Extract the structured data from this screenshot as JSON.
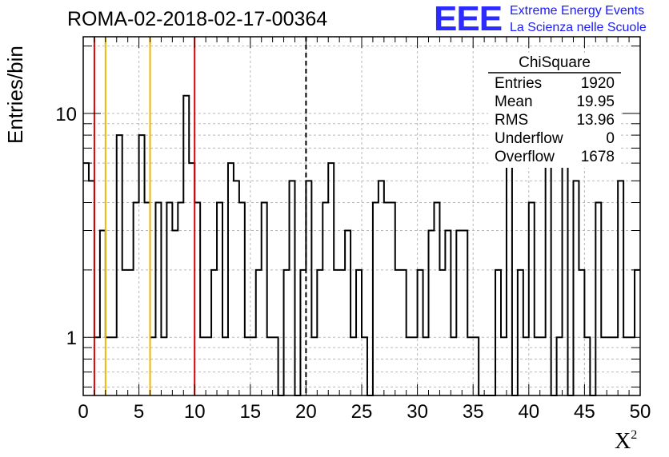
{
  "title": "ROMA-02-2018-02-17-00364",
  "logo": {
    "mark": "EEE",
    "line1": "Extreme Energy Events",
    "line2": "La Scienza nelle Scuole"
  },
  "axis": {
    "ylabel": "Entries/bin",
    "xlabel_base": "X",
    "xlabel_sup": "2"
  },
  "stats": {
    "title": "ChiSquare",
    "rows": [
      {
        "label": "Entries",
        "value": "1920"
      },
      {
        "label": "Mean",
        "value": "19.95"
      },
      {
        "label": "RMS",
        "value": "13.96"
      },
      {
        "label": "Underflow",
        "value": "0"
      },
      {
        "label": "Overflow",
        "value": "1678"
      }
    ]
  },
  "chart_data": {
    "type": "histogram",
    "xlim": [
      0,
      50
    ],
    "ylim": [
      0.55,
      22
    ],
    "y_scale": "log",
    "grid": true,
    "bin_width": 0.5,
    "x_ticks": [
      0,
      5,
      10,
      15,
      20,
      25,
      30,
      35,
      40,
      45,
      50
    ],
    "x_tick_labels": [
      "0",
      "5",
      "10",
      "15",
      "20",
      "25",
      "30",
      "35",
      "40",
      "45",
      "50"
    ],
    "y_ticks": [
      1,
      10
    ],
    "y_tick_labels": [
      "1",
      "10"
    ],
    "counts": [
      6,
      5,
      1,
      3,
      1,
      1,
      8,
      2,
      2,
      4,
      8,
      4,
      1,
      4,
      1,
      4,
      3,
      4,
      12,
      6,
      4,
      1,
      1,
      2,
      4,
      1,
      6,
      5,
      4,
      1,
      1,
      2,
      4,
      1,
      1,
      0,
      2,
      5,
      0,
      2,
      5,
      1,
      2,
      4,
      6,
      2,
      2,
      3,
      1,
      2,
      1,
      0,
      4,
      5,
      4,
      4,
      2,
      2,
      1,
      1,
      2,
      1,
      3,
      4,
      2,
      3,
      1,
      3,
      3,
      1,
      1,
      0,
      0,
      0,
      2,
      1,
      10,
      0,
      2,
      1,
      4,
      1,
      1,
      8,
      0,
      1,
      6,
      0,
      5,
      2,
      1,
      0,
      4,
      1,
      1,
      1,
      5,
      1,
      1,
      2,
      2,
      2,
      4,
      1,
      1,
      1,
      0,
      1,
      0,
      1,
      0,
      3,
      1,
      3,
      2,
      2,
      1,
      2,
      1,
      2,
      0,
      1,
      1,
      3,
      1,
      0,
      0,
      1,
      0,
      0,
      0,
      1,
      4,
      1,
      0,
      7,
      7,
      0,
      0,
      0,
      0,
      0,
      0
    ],
    "vertical_lines": [
      {
        "x": 1,
        "color": "#e00000",
        "style": "solid"
      },
      {
        "x": 2,
        "color": "#f0b800",
        "style": "solid"
      },
      {
        "x": 6,
        "color": "#f0b800",
        "style": "solid"
      },
      {
        "x": 10,
        "color": "#e00000",
        "style": "solid"
      },
      {
        "x": 20,
        "color": "#000000",
        "style": "dashed"
      }
    ]
  }
}
